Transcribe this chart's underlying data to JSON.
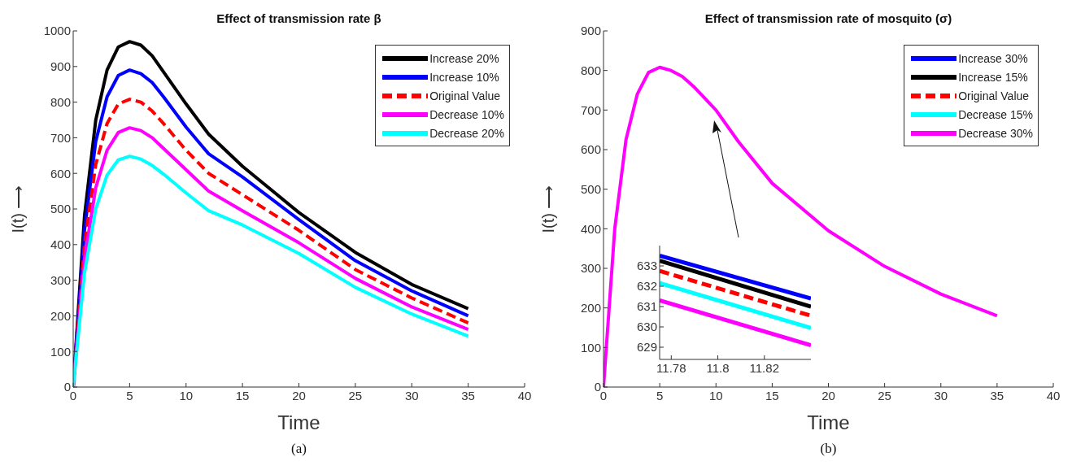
{
  "chart_data": [
    {
      "type": "line",
      "title": "Effect of transmission rate β",
      "xlabel": "Time",
      "ylabel": "I(t) ⟶",
      "x": [
        0,
        1,
        2,
        3,
        4,
        5,
        6,
        7,
        8,
        10,
        12,
        15,
        20,
        25,
        30,
        35
      ],
      "xlim": [
        0,
        40
      ],
      "xticks": [
        0,
        5,
        10,
        15,
        20,
        25,
        30,
        35,
        40
      ],
      "ylim": [
        0,
        1000
      ],
      "yticks": [
        0,
        100,
        200,
        300,
        400,
        500,
        600,
        700,
        800,
        900,
        1000
      ],
      "grid": false,
      "legend": "top right",
      "marker": "none",
      "line_style": "solid",
      "annotations": [
        "(a)"
      ],
      "series": [
        {
          "name": "Increase 20%",
          "color": "#000000",
          "values": [
            0,
            480,
            750,
            890,
            955,
            970,
            960,
            930,
            885,
            795,
            710,
            620,
            490,
            378,
            288,
            220
          ]
        },
        {
          "name": "Increase 10%",
          "color": "#0000ff",
          "values": [
            0,
            440,
            690,
            815,
            875,
            890,
            880,
            855,
            815,
            730,
            655,
            590,
            470,
            355,
            270,
            200
          ]
        },
        {
          "name": "Original Value",
          "color": "#ff0000",
          "line_style": "dashed",
          "values": [
            0,
            400,
            625,
            740,
            795,
            808,
            800,
            775,
            740,
            665,
            600,
            540,
            440,
            330,
            250,
            180
          ]
        },
        {
          "name": "Decrease 10%",
          "color": "#ff00ff",
          "values": [
            0,
            360,
            560,
            665,
            715,
            728,
            720,
            700,
            670,
            610,
            550,
            495,
            405,
            305,
            225,
            162
          ]
        },
        {
          "name": "Decrease 20%",
          "color": "#00ffff",
          "values": [
            0,
            320,
            500,
            595,
            638,
            648,
            640,
            622,
            598,
            545,
            495,
            455,
            375,
            280,
            205,
            143
          ]
        }
      ]
    },
    {
      "type": "line",
      "title": "Effect of transmission rate of mosquito (σ)",
      "xlabel": "Time",
      "ylabel": "I(t) ⟶",
      "x": [
        0,
        1,
        2,
        3,
        4,
        5,
        6,
        7,
        8,
        10,
        12,
        15,
        20,
        25,
        30,
        35
      ],
      "xlim": [
        0,
        40
      ],
      "xticks": [
        0,
        5,
        10,
        15,
        20,
        25,
        30,
        35,
        40
      ],
      "ylim": [
        0,
        900
      ],
      "yticks": [
        0,
        100,
        200,
        300,
        400,
        500,
        600,
        700,
        800,
        900
      ],
      "grid": false,
      "legend": "top right",
      "marker": "none",
      "line_style": "solid",
      "annotations": [
        "(b)"
      ],
      "series": [
        {
          "name": "Increase 30%",
          "color": "#0000ff",
          "values": [
            null,
            null,
            null,
            null,
            null,
            null,
            null,
            null,
            null,
            null,
            null,
            null,
            null,
            null,
            null,
            null
          ]
        },
        {
          "name": "Increase 15%",
          "color": "#000000",
          "values": [
            null,
            null,
            null,
            null,
            null,
            null,
            null,
            null,
            null,
            null,
            null,
            null,
            null,
            null,
            null,
            null
          ]
        },
        {
          "name": "Original Value",
          "color": "#ff0000",
          "line_style": "dashed",
          "values": [
            null,
            null,
            null,
            null,
            null,
            null,
            null,
            null,
            null,
            null,
            null,
            null,
            null,
            null,
            null,
            null
          ]
        },
        {
          "name": "Decrease 15%",
          "color": "#00ffff",
          "values": [
            null,
            null,
            null,
            null,
            null,
            null,
            null,
            null,
            null,
            null,
            null,
            null,
            null,
            null,
            null,
            null
          ]
        },
        {
          "name": "Decrease 30%",
          "color": "#ff00ff",
          "values": [
            0,
            400,
            625,
            740,
            795,
            808,
            800,
            785,
            760,
            700,
            620,
            515,
            395,
            305,
            235,
            180
          ]
        }
      ]
    },
    {
      "type": "line",
      "x": [
        11.775,
        11.84
      ],
      "xlim": [
        11.775,
        11.84
      ],
      "xticks": [
        11.78,
        11.8,
        11.82
      ],
      "ylim": [
        628.4,
        634
      ],
      "yticks": [
        629,
        630,
        631,
        632,
        633
      ],
      "grid": false,
      "legend": false,
      "marker": "none",
      "line_style": "solid",
      "series": [
        {
          "color": "#0000ff",
          "values": [
            633.5,
            631.4
          ]
        },
        {
          "color": "#000000",
          "values": [
            633.25,
            631.0
          ]
        },
        {
          "color": "#ff0000",
          "line_style": "dashed",
          "values": [
            632.75,
            630.55
          ]
        },
        {
          "color": "#00ffff",
          "values": [
            632.15,
            629.95
          ]
        },
        {
          "color": "#ff00ff",
          "values": [
            631.3,
            629.1
          ]
        }
      ]
    }
  ]
}
